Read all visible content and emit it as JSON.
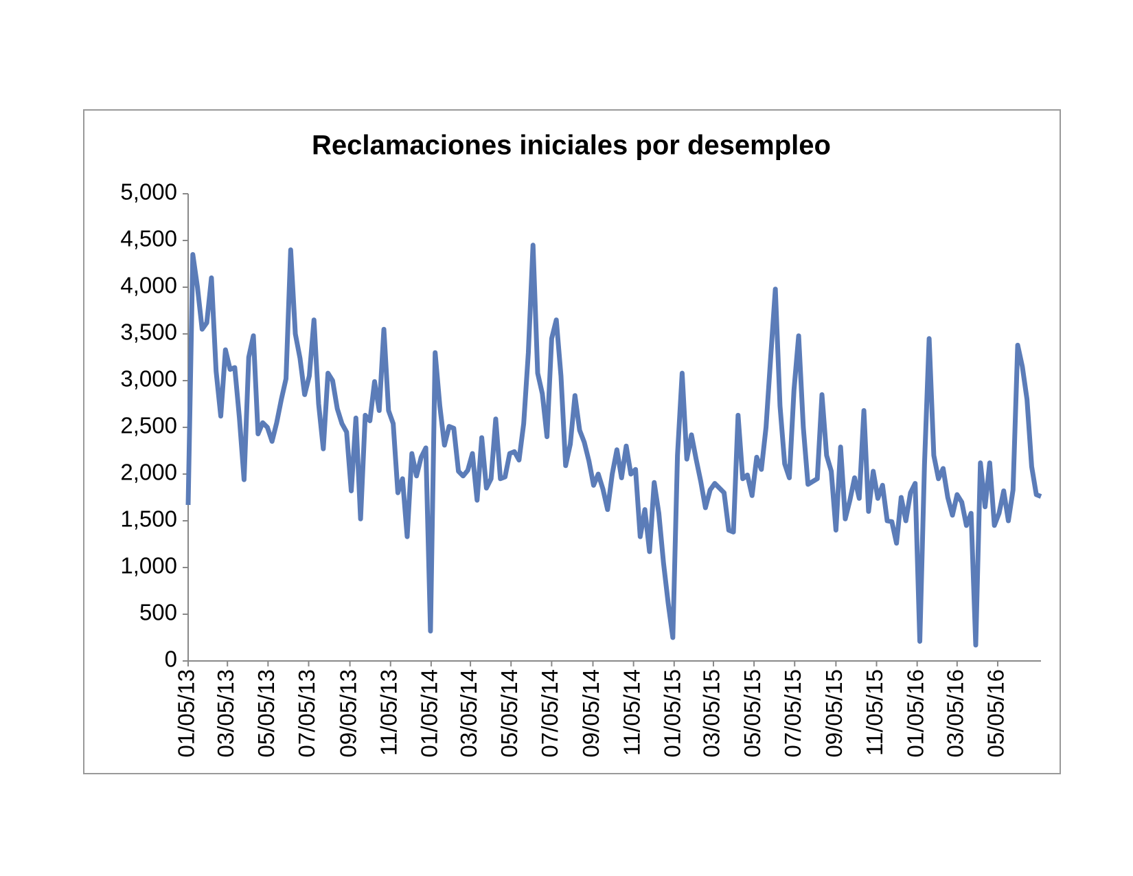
{
  "chart_data": {
    "type": "line",
    "title": "Reclamaciones iniciales por desempleo",
    "color": "#5b7cb8",
    "grid": false,
    "x": [
      "2013-01-05",
      "2013-01-12",
      "2013-01-19",
      "2013-01-26",
      "2013-02-02",
      "2013-02-09",
      "2013-02-16",
      "2013-02-23",
      "2013-03-02",
      "2013-03-09",
      "2013-03-16",
      "2013-03-23",
      "2013-03-30",
      "2013-04-06",
      "2013-04-13",
      "2013-04-20",
      "2013-04-27",
      "2013-05-04",
      "2013-05-11",
      "2013-05-18",
      "2013-05-25",
      "2013-06-01",
      "2013-06-08",
      "2013-06-15",
      "2013-06-22",
      "2013-06-29",
      "2013-07-06",
      "2013-07-13",
      "2013-07-20",
      "2013-07-27",
      "2013-08-03",
      "2013-08-10",
      "2013-08-17",
      "2013-08-24",
      "2013-08-31",
      "2013-09-07",
      "2013-09-14",
      "2013-09-21",
      "2013-09-28",
      "2013-10-05",
      "2013-10-12",
      "2013-10-19",
      "2013-10-26",
      "2013-11-02",
      "2013-11-09",
      "2013-11-16",
      "2013-11-23",
      "2013-11-30",
      "2013-12-07",
      "2013-12-14",
      "2013-12-21",
      "2013-12-28",
      "2014-01-04",
      "2014-01-11",
      "2014-01-18",
      "2014-01-25",
      "2014-02-01",
      "2014-02-08",
      "2014-02-15",
      "2014-02-22",
      "2014-03-01",
      "2014-03-08",
      "2014-03-15",
      "2014-03-22",
      "2014-03-29",
      "2014-04-05",
      "2014-04-12",
      "2014-04-19",
      "2014-04-26",
      "2014-05-03",
      "2014-05-10",
      "2014-05-17",
      "2014-05-24",
      "2014-05-31",
      "2014-06-07",
      "2014-06-14",
      "2014-06-21",
      "2014-06-28",
      "2014-07-05",
      "2014-07-12",
      "2014-07-19",
      "2014-07-26",
      "2014-08-02",
      "2014-08-09",
      "2014-08-16",
      "2014-08-23",
      "2014-08-30",
      "2014-09-06",
      "2014-09-13",
      "2014-09-20",
      "2014-09-27",
      "2014-10-04",
      "2014-10-11",
      "2014-10-18",
      "2014-10-25",
      "2014-11-01",
      "2014-11-08",
      "2014-11-15",
      "2014-11-22",
      "2014-11-29",
      "2014-12-06",
      "2014-12-13",
      "2014-12-20",
      "2014-12-27",
      "2015-01-03",
      "2015-01-10",
      "2015-01-17",
      "2015-01-24",
      "2015-01-31",
      "2015-02-07",
      "2015-02-14",
      "2015-02-21",
      "2015-02-28",
      "2015-03-07",
      "2015-03-14",
      "2015-03-21",
      "2015-03-28",
      "2015-04-04",
      "2015-04-11",
      "2015-04-18",
      "2015-04-25",
      "2015-05-02",
      "2015-05-09",
      "2015-05-16",
      "2015-05-23",
      "2015-05-30",
      "2015-06-06",
      "2015-06-13",
      "2015-06-20",
      "2015-06-27",
      "2015-07-04",
      "2015-07-11",
      "2015-07-18",
      "2015-07-25",
      "2015-08-01",
      "2015-08-08",
      "2015-08-15",
      "2015-08-22",
      "2015-08-29",
      "2015-09-05",
      "2015-09-12",
      "2015-09-19",
      "2015-09-26",
      "2015-10-03",
      "2015-10-10",
      "2015-10-17",
      "2015-10-24",
      "2015-10-31",
      "2015-11-07",
      "2015-11-14",
      "2015-11-21",
      "2015-11-28",
      "2015-12-05",
      "2015-12-12",
      "2015-12-19",
      "2015-12-26",
      "2016-01-02",
      "2016-01-09",
      "2016-01-16",
      "2016-01-23",
      "2016-01-30",
      "2016-02-06",
      "2016-02-13",
      "2016-02-20",
      "2016-02-27",
      "2016-03-05",
      "2016-03-12",
      "2016-03-19",
      "2016-03-26",
      "2016-04-02",
      "2016-04-09",
      "2016-04-16",
      "2016-04-23",
      "2016-04-30",
      "2016-05-07",
      "2016-05-14",
      "2016-05-21",
      "2016-05-28",
      "2016-06-04",
      "2016-06-11",
      "2016-06-18",
      "2016-06-25",
      "2016-07-02",
      "2016-07-09"
    ],
    "values": [
      1670,
      4350,
      4000,
      3550,
      3620,
      4100,
      3100,
      2620,
      3330,
      3120,
      3140,
      2600,
      1940,
      3250,
      3480,
      2430,
      2550,
      2500,
      2350,
      2550,
      2800,
      3020,
      4400,
      3500,
      3240,
      2850,
      3050,
      3650,
      2750,
      2270,
      3080,
      3000,
      2700,
      2540,
      2450,
      1820,
      2600,
      1520,
      2630,
      2570,
      2990,
      2680,
      3550,
      2680,
      2540,
      1800,
      1950,
      1330,
      2220,
      1980,
      2180,
      2280,
      320,
      3300,
      2730,
      2310,
      2510,
      2490,
      2030,
      1980,
      2040,
      2220,
      1720,
      2390,
      1850,
      1950,
      2590,
      1950,
      1970,
      2220,
      2240,
      2150,
      2540,
      3300,
      4450,
      3080,
      2860,
      2400,
      3450,
      3650,
      3050,
      2090,
      2320,
      2840,
      2470,
      2340,
      2140,
      1880,
      2000,
      1840,
      1620,
      2000,
      2260,
      1960,
      2300,
      2000,
      2050,
      1330,
      1620,
      1170,
      1910,
      1580,
      1050,
      620,
      250,
      2200,
      3080,
      2160,
      2420,
      2160,
      1920,
      1640,
      1830,
      1900,
      1850,
      1800,
      1400,
      1380,
      2630,
      1950,
      1990,
      1770,
      2180,
      2050,
      2500,
      3250,
      3980,
      2730,
      2110,
      1960,
      2900,
      3480,
      2500,
      1890,
      1920,
      1950,
      2850,
      2200,
      2030,
      1400,
      2290,
      1520,
      1720,
      1960,
      1740,
      2680,
      1600,
      2030,
      1740,
      1880,
      1500,
      1490,
      1260,
      1750,
      1500,
      1800,
      1900,
      210,
      2100,
      3450,
      2200,
      1950,
      2060,
      1750,
      1560,
      1780,
      1700,
      1450,
      1580,
      170,
      2120,
      1650,
      2120,
      1450,
      1580,
      1820,
      1500,
      1830,
      3380,
      3150,
      2800,
      2080,
      1780,
      1760
    ],
    "xlim": [
      "2013-01-05",
      "2016-07-09"
    ],
    "xticks": [
      {
        "value": "2013-01-05",
        "label": "01/05/13"
      },
      {
        "value": "2013-03-05",
        "label": "03/05/13"
      },
      {
        "value": "2013-05-05",
        "label": "05/05/13"
      },
      {
        "value": "2013-07-05",
        "label": "07/05/13"
      },
      {
        "value": "2013-09-05",
        "label": "09/05/13"
      },
      {
        "value": "2013-11-05",
        "label": "11/05/13"
      },
      {
        "value": "2014-01-05",
        "label": "01/05/14"
      },
      {
        "value": "2014-03-05",
        "label": "03/05/14"
      },
      {
        "value": "2014-05-05",
        "label": "05/05/14"
      },
      {
        "value": "2014-07-05",
        "label": "07/05/14"
      },
      {
        "value": "2014-09-05",
        "label": "09/05/14"
      },
      {
        "value": "2014-11-05",
        "label": "11/05/14"
      },
      {
        "value": "2015-01-05",
        "label": "01/05/15"
      },
      {
        "value": "2015-03-05",
        "label": "03/05/15"
      },
      {
        "value": "2015-05-05",
        "label": "05/05/15"
      },
      {
        "value": "2015-07-05",
        "label": "07/05/15"
      },
      {
        "value": "2015-09-05",
        "label": "09/05/15"
      },
      {
        "value": "2015-11-05",
        "label": "11/05/15"
      },
      {
        "value": "2016-01-05",
        "label": "01/05/16"
      },
      {
        "value": "2016-03-05",
        "label": "03/05/16"
      },
      {
        "value": "2016-05-05",
        "label": "05/05/16"
      }
    ],
    "ylim": [
      0,
      5000
    ],
    "yticks": [
      0,
      500,
      {
        "value": 1000,
        "label": "1,000"
      },
      {
        "value": 1500,
        "label": "1,500"
      },
      {
        "value": 2000,
        "label": "2,000"
      },
      {
        "value": 2500,
        "label": "2,500"
      },
      {
        "value": 3000,
        "label": "3,000"
      },
      {
        "value": 3500,
        "label": "3,500"
      },
      {
        "value": 4000,
        "label": "4,000"
      },
      {
        "value": 4500,
        "label": "4,500"
      },
      {
        "value": 5000,
        "label": "5,000"
      }
    ]
  }
}
